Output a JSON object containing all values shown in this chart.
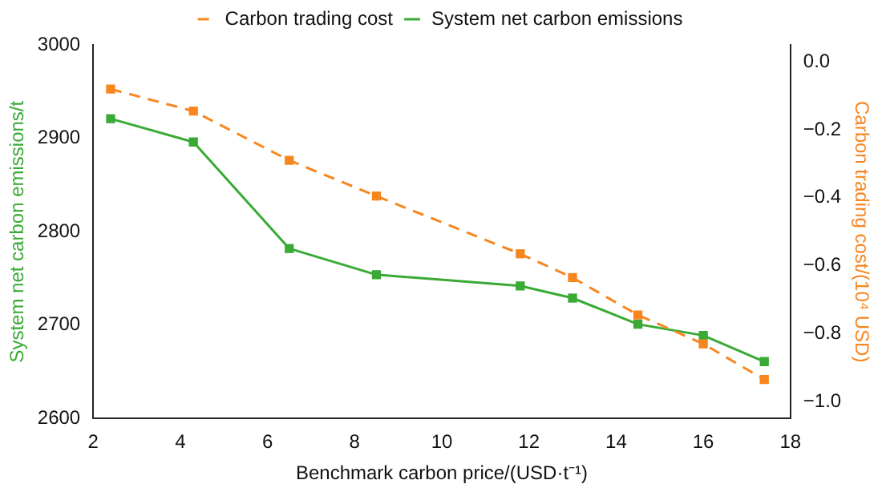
{
  "chart_data": {
    "type": "line",
    "xlabel": "Benchmark carbon price/(USD·t⁻¹)",
    "ylabel": "System net carbon emissions/t",
    "y2label": "Carbon trading cost/(10⁴ USD)",
    "xlim": [
      2,
      18
    ],
    "xticks": [
      2,
      4,
      6,
      8,
      10,
      12,
      14,
      16,
      18
    ],
    "ylim": [
      2600,
      3000
    ],
    "yticks": [
      2600,
      2700,
      2800,
      2900,
      3000
    ],
    "y2lim": [
      -1.05,
      0.05
    ],
    "y2ticks": [
      {
        "value": 0,
        "label": "0.0"
      },
      -0.2,
      -0.4,
      -0.6,
      -0.8,
      {
        "value": -1,
        "label": "−1.0"
      }
    ],
    "grid": false,
    "legend": "top",
    "marker": "square",
    "series": [
      {
        "name": "Carbon trading cost",
        "color": "#f7861e",
        "axis": "y2",
        "line_style": "dashed",
        "x": [
          2.4,
          4.3,
          6.5,
          8.5,
          11.8,
          13,
          14.5,
          16,
          17.4
        ],
        "values": [
          -0.08,
          -0.145,
          -0.29,
          -0.395,
          -0.565,
          -0.635,
          -0.745,
          -0.83,
          -0.935
        ]
      },
      {
        "name": "System net carbon emissions",
        "color": "#3aaa35",
        "line_style": "solid",
        "x": [
          2.4,
          4.3,
          6.5,
          8.5,
          11.8,
          13,
          14.5,
          16,
          17.4
        ],
        "values": [
          2921,
          2896,
          2782,
          2754,
          2742,
          2729,
          2701,
          2689,
          2661
        ]
      }
    ]
  }
}
